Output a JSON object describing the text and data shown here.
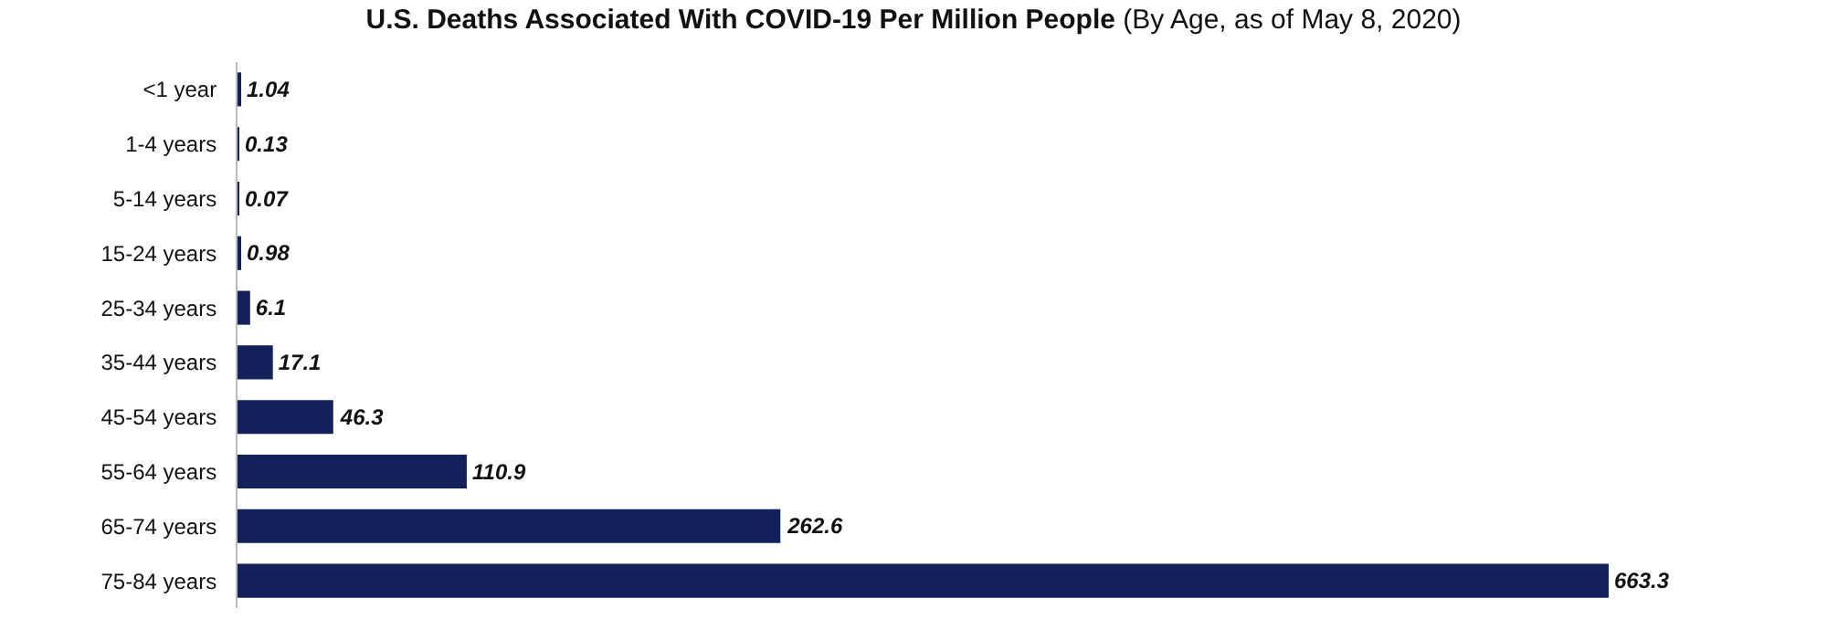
{
  "chart_data": {
    "type": "bar",
    "orientation": "horizontal",
    "title": "U.S. Deaths Associated With COVID-19 Per Million People",
    "subtitle": "(By Age, as of May 8, 2020)",
    "categories": [
      "<1 year",
      "1-4 years",
      "5-14 years",
      "15-24 years",
      "25-34 years",
      "35-44 years",
      "45-54 years",
      "55-64 years",
      "65-74 years",
      "75-84 years"
    ],
    "values": [
      1.04,
      0.13,
      0.07,
      0.98,
      6.1,
      17.1,
      46.3,
      110.9,
      262.6,
      663.3
    ],
    "color": "#13215a",
    "data_labels": true,
    "value_labels": [
      "1.04",
      "0.13",
      "0.07",
      "0.98",
      "6.1",
      "17.1",
      "46.3",
      "110.9",
      "262.6",
      "663.3"
    ],
    "legend": false
  }
}
